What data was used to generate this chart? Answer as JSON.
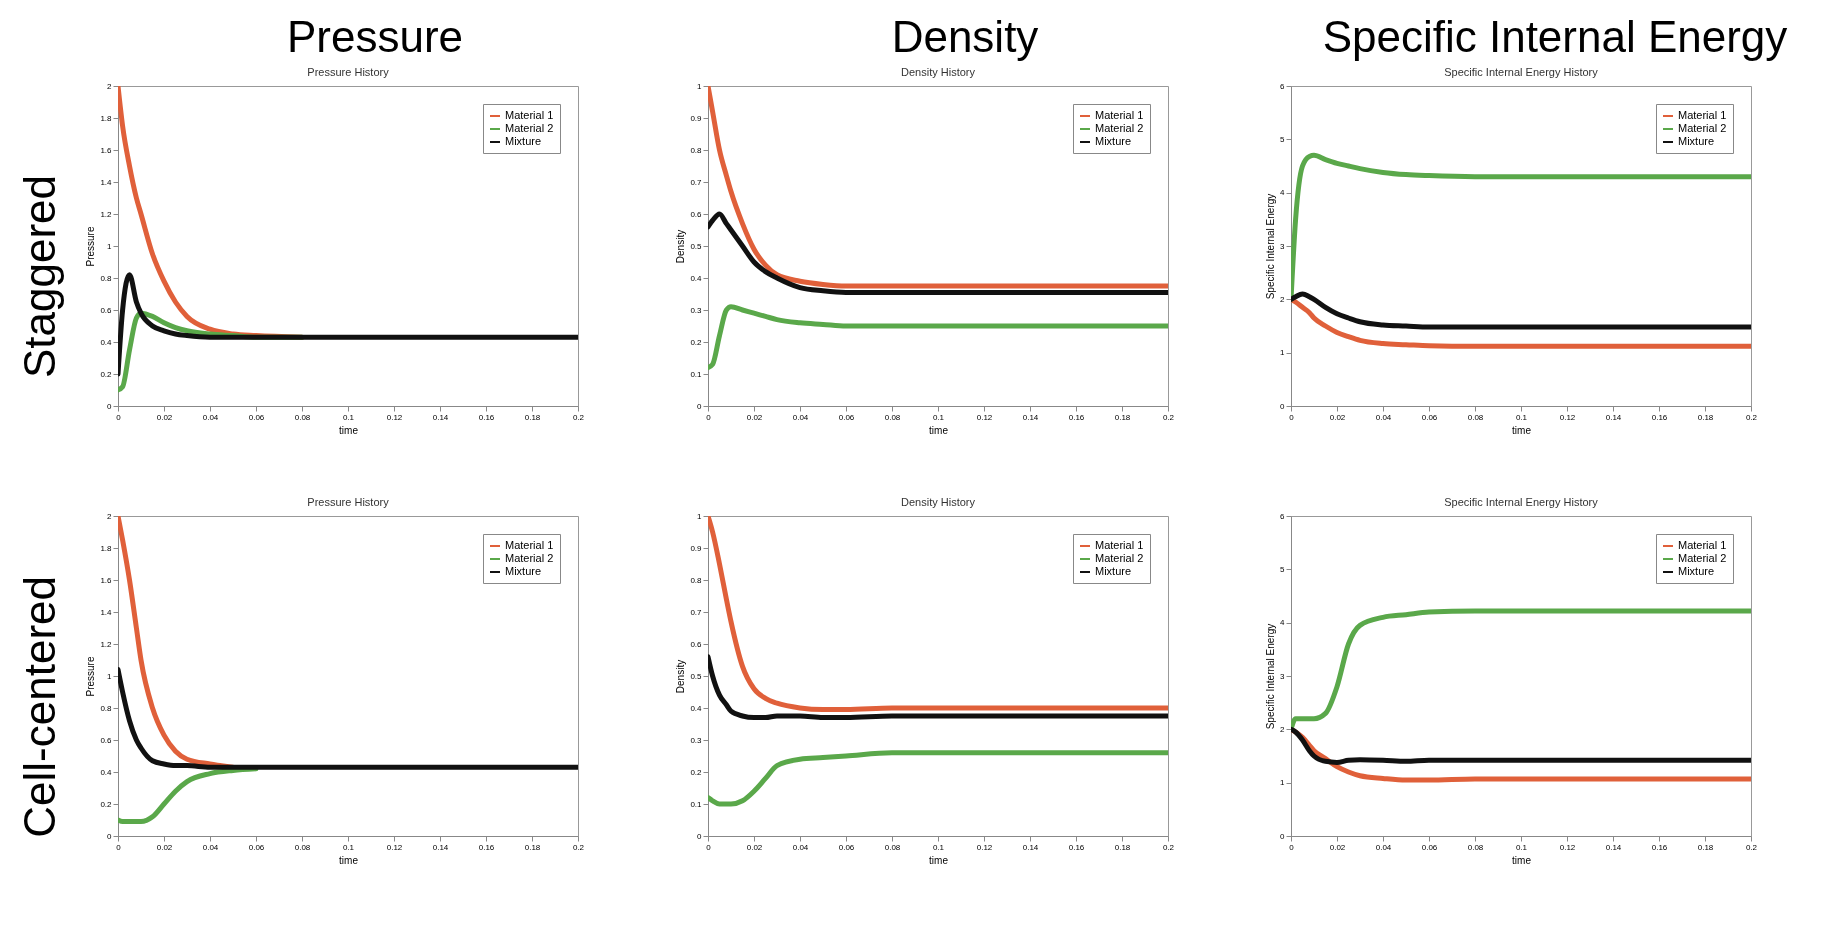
{
  "chart_data": [
    {
      "type": "line",
      "title": "Pressure History",
      "xlabel": "time",
      "ylabel": "Pressure",
      "annotations": [
        "Pressure",
        "Staggered"
      ],
      "legend": "top right",
      "x": [
        0,
        0.002,
        0.005,
        0.008,
        0.01,
        0.015,
        0.02,
        0.025,
        0.03,
        0.04,
        0.05,
        0.06,
        0.08,
        0.1,
        0.12,
        0.14,
        0.16,
        0.18,
        0.2
      ],
      "xlim": [
        0,
        0.2
      ],
      "xticks": [
        0,
        0.02,
        0.04,
        0.06,
        0.08,
        0.1,
        0.12,
        0.14,
        0.16,
        0.18,
        0.2
      ],
      "ylim": [
        0,
        2
      ],
      "yticks": [
        0,
        0.2,
        0.4,
        0.6,
        0.8,
        1,
        1.2,
        1.4,
        1.6,
        1.8,
        2
      ],
      "series": [
        {
          "name": "Material 1",
          "color": "#e0603a",
          "values": [
            2,
            1.75,
            1.5,
            1.3,
            1.2,
            0.95,
            0.78,
            0.65,
            0.56,
            0.48,
            0.45,
            0.44,
            0.43,
            null,
            null,
            null,
            null,
            null,
            null
          ]
        },
        {
          "name": "Material 2",
          "color": "#5aa84a",
          "values": [
            0.1,
            0.12,
            0.35,
            0.55,
            0.58,
            0.56,
            0.52,
            0.49,
            0.47,
            0.45,
            0.44,
            0.43,
            0.43,
            null,
            null,
            null,
            null,
            null,
            null
          ]
        },
        {
          "name": "Mixture",
          "color": "#111111",
          "values": [
            0.2,
            0.6,
            0.82,
            0.65,
            0.58,
            0.5,
            0.47,
            0.45,
            0.44,
            0.43,
            0.43,
            0.43,
            0.43,
            0.43,
            0.43,
            0.43,
            0.43,
            0.43,
            0.43
          ]
        }
      ]
    },
    {
      "type": "line",
      "title": "Density History",
      "xlabel": "time",
      "ylabel": "Density",
      "annotations": [
        "Density"
      ],
      "legend": "top right",
      "x": [
        0,
        0.002,
        0.005,
        0.008,
        0.01,
        0.015,
        0.02,
        0.025,
        0.03,
        0.04,
        0.05,
        0.06,
        0.08,
        0.1,
        0.12,
        0.14,
        0.16,
        0.18,
        0.2
      ],
      "xlim": [
        0,
        0.2
      ],
      "xticks": [
        0,
        0.02,
        0.04,
        0.06,
        0.08,
        0.1,
        0.12,
        0.14,
        0.16,
        0.18,
        0.2
      ],
      "ylim": [
        0,
        1
      ],
      "yticks": [
        0,
        0.1,
        0.2,
        0.3,
        0.4,
        0.5,
        0.6,
        0.7,
        0.8,
        0.9,
        1
      ],
      "series": [
        {
          "name": "Material 1",
          "color": "#e0603a",
          "values": [
            1,
            0.92,
            0.8,
            0.72,
            0.67,
            0.57,
            0.49,
            0.44,
            0.41,
            0.39,
            0.38,
            0.375,
            0.375,
            0.375,
            0.375,
            0.375,
            0.375,
            0.375,
            0.375
          ]
        },
        {
          "name": "Material 2",
          "color": "#5aa84a",
          "values": [
            0.12,
            0.13,
            0.22,
            0.3,
            0.31,
            0.3,
            0.29,
            0.28,
            0.27,
            0.26,
            0.255,
            0.25,
            0.25,
            0.25,
            0.25,
            0.25,
            0.25,
            0.25,
            0.25
          ]
        },
        {
          "name": "Mixture",
          "color": "#111111",
          "values": [
            0.56,
            0.58,
            0.6,
            0.57,
            0.55,
            0.5,
            0.45,
            0.42,
            0.4,
            0.37,
            0.36,
            0.355,
            0.355,
            0.355,
            0.355,
            0.355,
            0.355,
            0.355,
            0.355
          ]
        }
      ]
    },
    {
      "type": "line",
      "title": "Specific Internal Energy History",
      "xlabel": "time",
      "ylabel": "Specific Internal Energy",
      "annotations": [
        "Specific Internal Energy"
      ],
      "legend": "top right",
      "x": [
        0,
        0.002,
        0.005,
        0.008,
        0.01,
        0.015,
        0.02,
        0.025,
        0.03,
        0.04,
        0.05,
        0.06,
        0.08,
        0.1,
        0.12,
        0.14,
        0.16,
        0.18,
        0.2
      ],
      "xlim": [
        0,
        0.2
      ],
      "xticks": [
        0,
        0.02,
        0.04,
        0.06,
        0.08,
        0.1,
        0.12,
        0.14,
        0.16,
        0.18,
        0.2
      ],
      "ylim": [
        0,
        6
      ],
      "yticks": [
        0,
        1,
        2,
        3,
        4,
        5,
        6
      ],
      "series": [
        {
          "name": "Material 1",
          "color": "#e0603a",
          "values": [
            2,
            1.95,
            1.85,
            1.75,
            1.65,
            1.5,
            1.38,
            1.3,
            1.23,
            1.17,
            1.15,
            1.13,
            1.12,
            1.12,
            1.12,
            1.12,
            1.12,
            1.12,
            1.12
          ]
        },
        {
          "name": "Material 2",
          "color": "#5aa84a",
          "values": [
            2,
            3.5,
            4.5,
            4.68,
            4.7,
            4.62,
            4.55,
            4.5,
            4.45,
            4.38,
            4.34,
            4.32,
            4.3,
            4.3,
            4.3,
            4.3,
            4.3,
            4.3,
            4.3
          ]
        },
        {
          "name": "Mixture",
          "color": "#111111",
          "values": [
            2,
            2.05,
            2.1,
            2.05,
            2,
            1.85,
            1.73,
            1.65,
            1.58,
            1.52,
            1.5,
            1.48,
            1.48,
            1.48,
            1.48,
            1.48,
            1.48,
            1.48,
            1.48
          ]
        }
      ]
    },
    {
      "type": "line",
      "title": "Pressure History",
      "xlabel": "time",
      "ylabel": "Pressure",
      "annotations": [
        "Cell-centered"
      ],
      "legend": "top right",
      "x": [
        0,
        0.002,
        0.005,
        0.008,
        0.01,
        0.015,
        0.02,
        0.025,
        0.03,
        0.04,
        0.05,
        0.06,
        0.08,
        0.1,
        0.12,
        0.14,
        0.16,
        0.18,
        0.2
      ],
      "xlim": [
        0,
        0.2
      ],
      "xticks": [
        0,
        0.02,
        0.04,
        0.06,
        0.08,
        0.1,
        0.12,
        0.14,
        0.16,
        0.18,
        0.2
      ],
      "ylim": [
        0,
        2
      ],
      "yticks": [
        0,
        0.2,
        0.4,
        0.6,
        0.8,
        1,
        1.2,
        1.4,
        1.6,
        1.8,
        2
      ],
      "series": [
        {
          "name": "Material 1",
          "color": "#e0603a",
          "values": [
            2,
            1.85,
            1.6,
            1.3,
            1.1,
            0.8,
            0.63,
            0.53,
            0.48,
            0.45,
            0.43,
            null,
            null,
            null,
            null,
            null,
            null,
            null,
            null
          ]
        },
        {
          "name": "Material 2",
          "color": "#5aa84a",
          "values": [
            0.1,
            0.09,
            0.09,
            0.09,
            0.09,
            0.12,
            0.2,
            0.28,
            0.34,
            0.39,
            0.41,
            0.42,
            null,
            null,
            null,
            null,
            null,
            null,
            null
          ]
        },
        {
          "name": "Mixture",
          "color": "#111111",
          "values": [
            1.04,
            0.9,
            0.72,
            0.6,
            0.55,
            0.47,
            0.45,
            0.44,
            0.44,
            0.43,
            0.43,
            0.43,
            0.43,
            0.43,
            0.43,
            0.43,
            0.43,
            0.43,
            0.43
          ]
        }
      ]
    },
    {
      "type": "line",
      "title": "Density History",
      "xlabel": "time",
      "ylabel": "Density",
      "legend": "top right",
      "x": [
        0,
        0.002,
        0.005,
        0.008,
        0.01,
        0.015,
        0.02,
        0.025,
        0.03,
        0.04,
        0.05,
        0.06,
        0.08,
        0.1,
        0.12,
        0.14,
        0.16,
        0.18,
        0.2
      ],
      "xlim": [
        0,
        0.2
      ],
      "xticks": [
        0,
        0.02,
        0.04,
        0.06,
        0.08,
        0.1,
        0.12,
        0.14,
        0.16,
        0.18,
        0.2
      ],
      "ylim": [
        0,
        1
      ],
      "yticks": [
        0,
        0.1,
        0.2,
        0.3,
        0.4,
        0.5,
        0.6,
        0.7,
        0.8,
        0.9,
        1
      ],
      "series": [
        {
          "name": "Material 1",
          "color": "#e0603a",
          "values": [
            1,
            0.95,
            0.85,
            0.74,
            0.67,
            0.53,
            0.46,
            0.43,
            0.415,
            0.4,
            0.395,
            0.395,
            0.4,
            0.4,
            0.4,
            0.4,
            0.4,
            0.4,
            0.4
          ]
        },
        {
          "name": "Material 2",
          "color": "#5aa84a",
          "values": [
            0.12,
            0.11,
            0.1,
            0.1,
            0.1,
            0.11,
            0.14,
            0.18,
            0.22,
            0.24,
            0.245,
            0.25,
            0.26,
            0.26,
            0.26,
            0.26,
            0.26,
            0.26,
            0.26
          ]
        },
        {
          "name": "Mixture",
          "color": "#111111",
          "values": [
            0.56,
            0.5,
            0.44,
            0.41,
            0.39,
            0.375,
            0.37,
            0.37,
            0.375,
            0.375,
            0.37,
            0.37,
            0.375,
            0.375,
            0.375,
            0.375,
            0.375,
            0.375,
            0.375
          ]
        }
      ]
    },
    {
      "type": "line",
      "title": "Specific Internal Energy History",
      "xlabel": "time",
      "ylabel": "Specific Internal Energy",
      "legend": "top right",
      "x": [
        0,
        0.002,
        0.005,
        0.008,
        0.01,
        0.015,
        0.02,
        0.025,
        0.03,
        0.04,
        0.05,
        0.06,
        0.08,
        0.1,
        0.12,
        0.14,
        0.16,
        0.18,
        0.2
      ],
      "xlim": [
        0,
        0.2
      ],
      "xticks": [
        0,
        0.02,
        0.04,
        0.06,
        0.08,
        0.1,
        0.12,
        0.14,
        0.16,
        0.18,
        0.2
      ],
      "ylim": [
        0,
        6
      ],
      "yticks": [
        0,
        1,
        2,
        3,
        4,
        5,
        6
      ],
      "series": [
        {
          "name": "Material 1",
          "color": "#e0603a",
          "values": [
            2,
            1.95,
            1.85,
            1.7,
            1.6,
            1.45,
            1.3,
            1.2,
            1.13,
            1.08,
            1.05,
            1.05,
            1.07,
            1.07,
            1.07,
            1.07,
            1.07,
            1.07,
            1.07
          ]
        },
        {
          "name": "Material 2",
          "color": "#5aa84a",
          "values": [
            2,
            2.2,
            2.2,
            2.2,
            2.2,
            2.3,
            2.8,
            3.6,
            3.95,
            4.1,
            4.15,
            4.2,
            4.22,
            4.22,
            4.22,
            4.22,
            4.22,
            4.22,
            4.22
          ]
        },
        {
          "name": "Mixture",
          "color": "#111111",
          "values": [
            2,
            1.95,
            1.8,
            1.6,
            1.5,
            1.4,
            1.38,
            1.42,
            1.43,
            1.42,
            1.4,
            1.42,
            1.42,
            1.42,
            1.42,
            1.42,
            1.42,
            1.42,
            1.42
          ]
        }
      ]
    }
  ]
}
